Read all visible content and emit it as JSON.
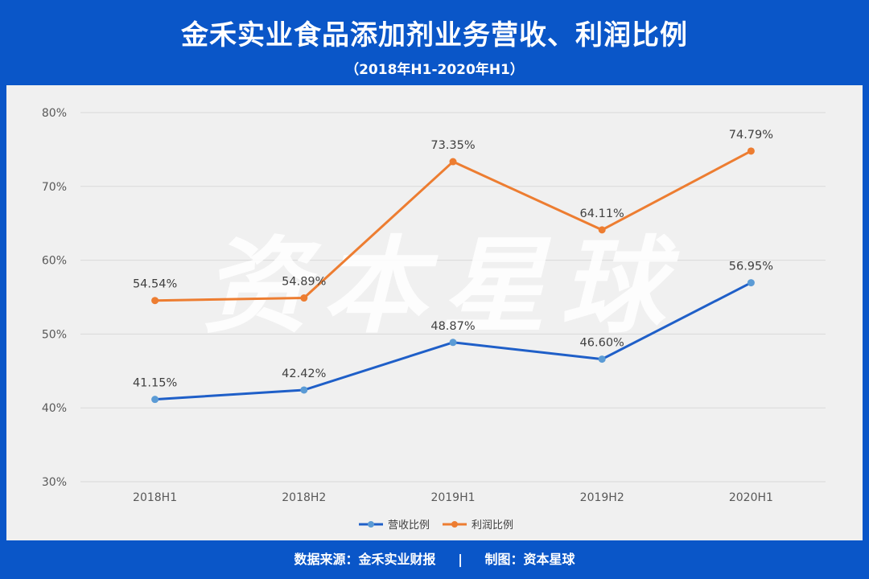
{
  "header": {
    "title": "金禾实业食品添加剂业务营收、利润比例",
    "subtitle": "（2018年H1-2020年H1）"
  },
  "footer": {
    "source": "数据来源：金禾实业财报",
    "separator": "|",
    "credit": "制图：资本星球"
  },
  "watermark": "资本星球",
  "colors": {
    "revenue": "#1f5fc8",
    "revenue_marker": "#5b9bd5",
    "profit": "#ed7d31",
    "grid": "#d9d9d9",
    "frame": "#0a56c8"
  },
  "chart_data": {
    "type": "line",
    "categories": [
      "2018H1",
      "2018H2",
      "2019H1",
      "2019H2",
      "2020H1"
    ],
    "yticks": [
      "30%",
      "40%",
      "50%",
      "60%",
      "70%",
      "80%"
    ],
    "ylim": [
      30,
      80
    ],
    "grid": true,
    "legend_position": "bottom",
    "series": [
      {
        "name": "营收比例",
        "values": [
          41.15,
          42.42,
          48.87,
          46.6,
          56.95
        ],
        "labels": [
          "41.15%",
          "42.42%",
          "48.87%",
          "46.60%",
          "56.95%"
        ]
      },
      {
        "name": "利润比例",
        "values": [
          54.54,
          54.89,
          73.35,
          64.11,
          74.79
        ],
        "labels": [
          "54.54%",
          "54.89%",
          "73.35%",
          "64.11%",
          "74.79%"
        ]
      }
    ]
  }
}
